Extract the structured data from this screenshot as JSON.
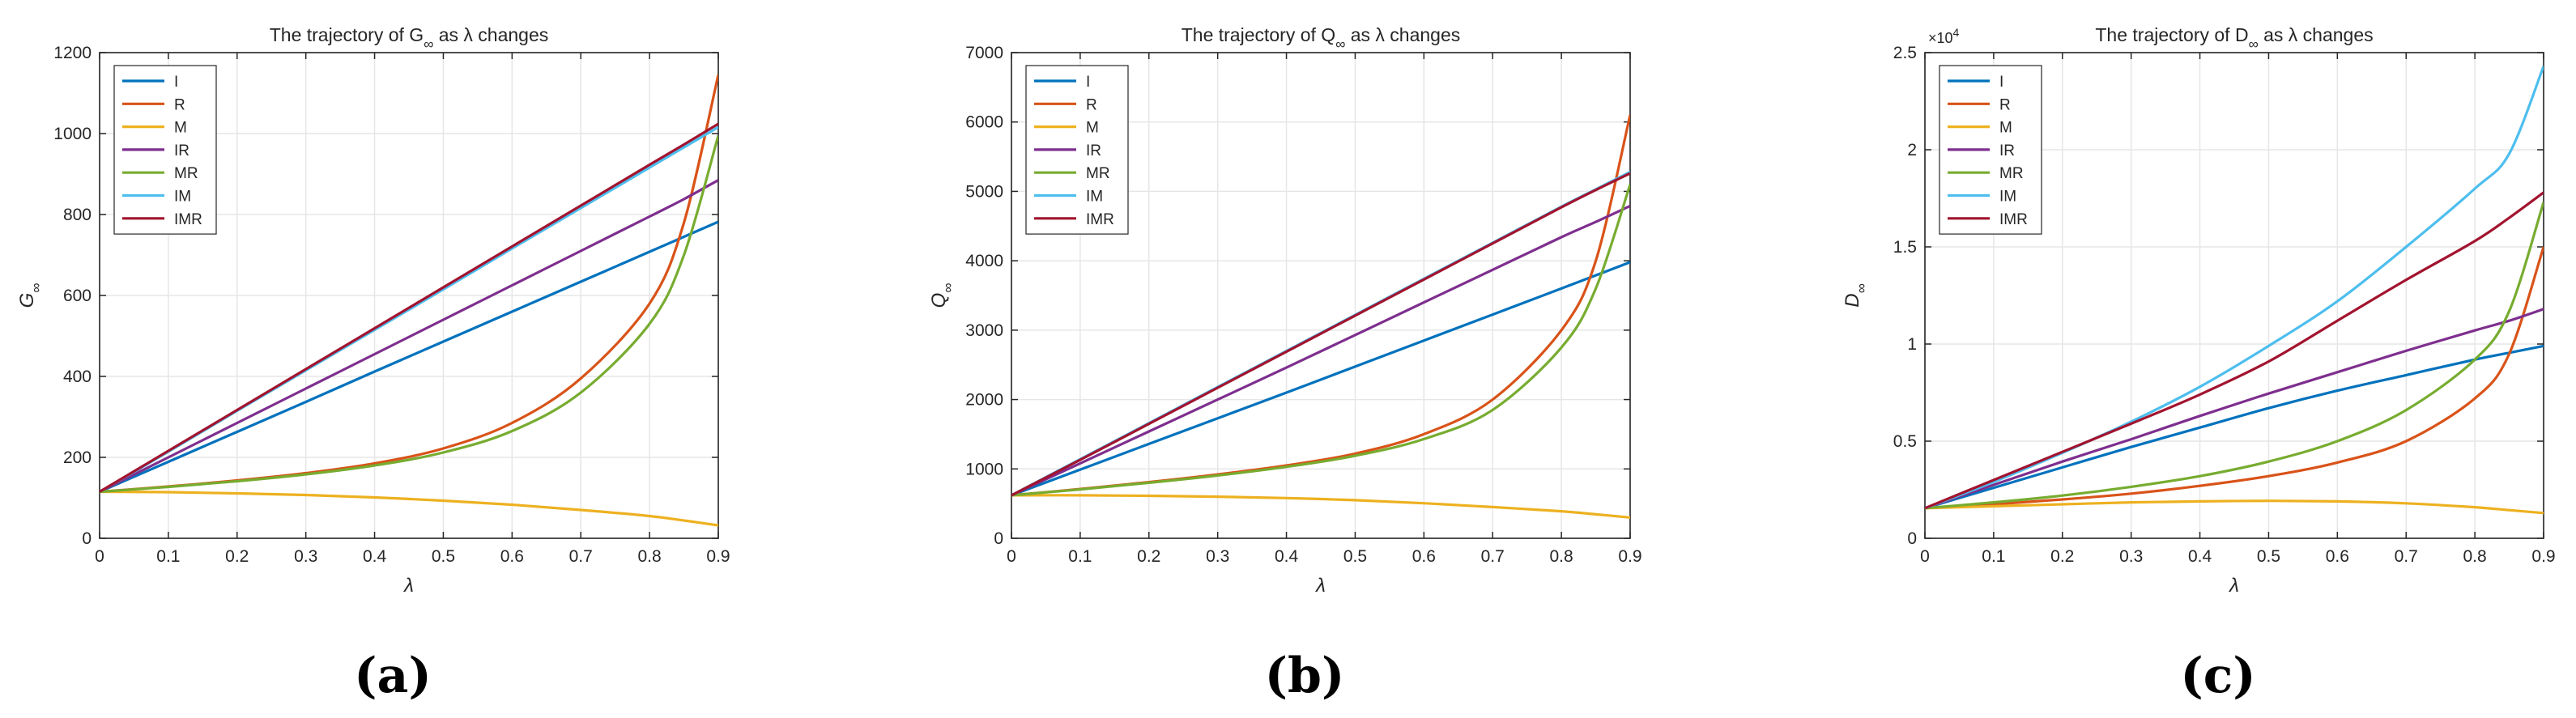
{
  "figure": {
    "subfigures": [
      "(a)",
      "(b)",
      "(c)"
    ]
  },
  "series_colors": {
    "I": "#0072BD",
    "R": "#D95319",
    "M": "#EDB120",
    "IR": "#7E2F8E",
    "MR": "#77AC30",
    "IM": "#4DBEEE",
    "IMR": "#A2142F"
  },
  "chart_data": [
    {
      "type": "line",
      "title_pre": "The trajectory of G",
      "title_sub": "∞",
      "title_post": " as λ changes",
      "xlabel": "λ",
      "ylabel": "G",
      "ylabel_sub": "∞",
      "xlim": [
        0,
        0.9
      ],
      "ylim": [
        0,
        1200
      ],
      "xticks": [
        0,
        0.1,
        0.2,
        0.3,
        0.4,
        0.5,
        0.6,
        0.7,
        0.8,
        0.9
      ],
      "xtick_labels": [
        "0",
        "0.1",
        "0.2",
        "0.3",
        "0.4",
        "0.5",
        "0.6",
        "0.7",
        "0.8",
        "0.9"
      ],
      "yticks": [
        0,
        200,
        400,
        600,
        800,
        1000,
        1200
      ],
      "ytick_labels": [
        "0",
        "200",
        "400",
        "600",
        "800",
        "1000",
        "1200"
      ],
      "exponent_label": "",
      "x": [
        0,
        0.1,
        0.2,
        0.3,
        0.4,
        0.5,
        0.6,
        0.7,
        0.8,
        0.85,
        0.9
      ],
      "series": [
        {
          "name": "I",
          "values": [
            115,
            189,
            263,
            337,
            412,
            486,
            560,
            634,
            708,
            745,
            782
          ]
        },
        {
          "name": "R",
          "values": [
            115,
            128,
            143,
            161,
            185,
            222,
            285,
            395,
            580,
            780,
            1145
          ]
        },
        {
          "name": "M",
          "values": [
            115,
            114,
            111,
            107,
            101,
            93,
            83,
            70,
            55,
            44,
            32
          ]
        },
        {
          "name": "IR",
          "values": [
            115,
            200,
            285,
            370,
            455,
            540,
            625,
            710,
            795,
            838,
            885
          ]
        },
        {
          "name": "MR",
          "values": [
            115,
            127,
            141,
            158,
            180,
            212,
            265,
            360,
            530,
            700,
            995
          ]
        },
        {
          "name": "IM",
          "values": [
            115,
            214,
            315,
            415,
            515,
            615,
            716,
            816,
            916,
            966,
            1016
          ]
        },
        {
          "name": "IMR",
          "values": [
            115,
            216,
            317,
            418,
            519,
            620,
            721,
            822,
            923,
            973,
            1024
          ]
        }
      ],
      "legend": [
        "I",
        "R",
        "M",
        "IR",
        "MR",
        "IM",
        "IMR"
      ],
      "legend_position": "top-left",
      "grid": true
    },
    {
      "type": "line",
      "title_pre": "The trajectory of Q",
      "title_sub": "∞",
      "title_post": " as λ changes",
      "xlabel": "λ",
      "ylabel": "Q",
      "ylabel_sub": "∞",
      "xlim": [
        0,
        0.9
      ],
      "ylim": [
        0,
        7000
      ],
      "xticks": [
        0,
        0.1,
        0.2,
        0.3,
        0.4,
        0.5,
        0.6,
        0.7,
        0.8,
        0.9
      ],
      "xtick_labels": [
        "0",
        "0.1",
        "0.2",
        "0.3",
        "0.4",
        "0.5",
        "0.6",
        "0.7",
        "0.8",
        "0.9"
      ],
      "yticks": [
        0,
        1000,
        2000,
        3000,
        4000,
        5000,
        6000,
        7000
      ],
      "ytick_labels": [
        "0",
        "1000",
        "2000",
        "3000",
        "4000",
        "5000",
        "6000",
        "7000"
      ],
      "exponent_label": "",
      "x": [
        0,
        0.1,
        0.2,
        0.3,
        0.4,
        0.5,
        0.6,
        0.7,
        0.8,
        0.85,
        0.9
      ],
      "series": [
        {
          "name": "I",
          "values": [
            620,
            990,
            1360,
            1730,
            2100,
            2475,
            2850,
            3225,
            3600,
            3790,
            3980
          ]
        },
        {
          "name": "R",
          "values": [
            620,
            710,
            810,
            920,
            1050,
            1220,
            1500,
            2000,
            3000,
            4000,
            6100
          ]
        },
        {
          "name": "M",
          "values": [
            620,
            620,
            612,
            600,
            580,
            550,
            505,
            450,
            390,
            345,
            300
          ]
        },
        {
          "name": "IR",
          "values": [
            620,
            1080,
            1540,
            2000,
            2460,
            2930,
            3400,
            3870,
            4340,
            4560,
            4790
          ]
        },
        {
          "name": "MR",
          "values": [
            620,
            705,
            800,
            905,
            1030,
            1190,
            1430,
            1850,
            2750,
            3600,
            5100
          ]
        },
        {
          "name": "IM",
          "values": [
            620,
            1140,
            1660,
            2180,
            2700,
            3220,
            3740,
            4260,
            4780,
            5030,
            5280
          ]
        },
        {
          "name": "IMR",
          "values": [
            620,
            1130,
            1650,
            2170,
            2690,
            3210,
            3730,
            4250,
            4770,
            5020,
            5260
          ]
        }
      ],
      "legend": [
        "I",
        "R",
        "M",
        "IR",
        "MR",
        "IM",
        "IMR"
      ],
      "legend_position": "top-left",
      "grid": true
    },
    {
      "type": "line",
      "title_pre": "The trajectory of D",
      "title_sub": "∞",
      "title_post": " as λ changes",
      "xlabel": "λ",
      "ylabel": "D",
      "ylabel_sub": "∞",
      "xlim": [
        0,
        0.9
      ],
      "ylim": [
        0,
        2.5
      ],
      "xticks": [
        0,
        0.1,
        0.2,
        0.3,
        0.4,
        0.5,
        0.6,
        0.7,
        0.8,
        0.9
      ],
      "xtick_labels": [
        "0",
        "0.1",
        "0.2",
        "0.3",
        "0.4",
        "0.5",
        "0.6",
        "0.7",
        "0.8",
        "0.9"
      ],
      "yticks": [
        0,
        0.5,
        1,
        1.5,
        2,
        2.5
      ],
      "ytick_labels": [
        "0",
        "0.5",
        "1",
        "1.5",
        "2",
        "2.5"
      ],
      "exponent_label": "×10",
      "exponent_power": "4",
      "x": [
        0,
        0.1,
        0.2,
        0.3,
        0.4,
        0.5,
        0.6,
        0.7,
        0.8,
        0.85,
        0.9
      ],
      "series": [
        {
          "name": "I",
          "values": [
            0.155,
            0.26,
            0.365,
            0.47,
            0.57,
            0.67,
            0.76,
            0.84,
            0.92,
            0.955,
            0.99
          ]
        },
        {
          "name": "R",
          "values": [
            0.155,
            0.175,
            0.2,
            0.23,
            0.27,
            0.32,
            0.39,
            0.5,
            0.72,
            0.95,
            1.5
          ]
        },
        {
          "name": "M",
          "values": [
            0.155,
            0.165,
            0.175,
            0.185,
            0.19,
            0.193,
            0.19,
            0.18,
            0.16,
            0.145,
            0.13
          ]
        },
        {
          "name": "IR",
          "values": [
            0.155,
            0.275,
            0.395,
            0.51,
            0.63,
            0.745,
            0.855,
            0.965,
            1.07,
            1.12,
            1.18
          ]
        },
        {
          "name": "MR",
          "values": [
            0.155,
            0.185,
            0.22,
            0.265,
            0.32,
            0.395,
            0.5,
            0.66,
            0.92,
            1.17,
            1.73
          ]
        },
        {
          "name": "IM",
          "values": [
            0.155,
            0.29,
            0.44,
            0.6,
            0.78,
            0.99,
            1.22,
            1.5,
            1.8,
            1.98,
            2.43
          ]
        },
        {
          "name": "IMR",
          "values": [
            0.155,
            0.3,
            0.445,
            0.59,
            0.74,
            0.91,
            1.12,
            1.33,
            1.53,
            1.65,
            1.78
          ]
        }
      ],
      "legend": [
        "I",
        "R",
        "M",
        "IR",
        "MR",
        "IM",
        "IMR"
      ],
      "legend_position": "top-left",
      "grid": true
    }
  ]
}
